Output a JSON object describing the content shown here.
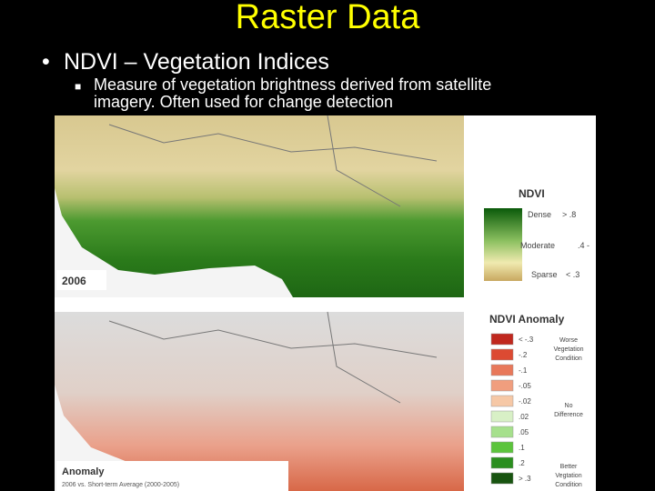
{
  "slide": {
    "title": "Raster Data",
    "bullet": "NDVI – Vegetation Indices",
    "sub_bullet": [
      "Measure of vegetation brightness derived from satellite",
      "imagery. Often used for change detection"
    ],
    "figure": {
      "ndvi_map": {
        "year_label": "2006"
      },
      "ndvi_legend": {
        "title": "NDVI",
        "dense": "Dense",
        "dense_value": "> .8",
        "moderate": "Moderate",
        "moderate_value": ".4 -",
        "sparse": "Sparse",
        "sparse_value": "< .3"
      },
      "anomaly_map": {
        "label": "Anomaly",
        "caption": "2006 vs. Short-term Average (2000-2005)"
      },
      "anomaly_legend": {
        "title": "NDVI Anomaly",
        "classes": [
          {
            "label": "< -.3",
            "color": "#c0281e"
          },
          {
            "label": "-.2",
            "color": "#dc4a32"
          },
          {
            "label": "-.1",
            "color": "#e8785a"
          },
          {
            "label": "-.05",
            "color": "#f09e7e"
          },
          {
            "label": "-.02",
            "color": "#f6c8a6"
          },
          {
            "label": ".02",
            "color": "#d8f0c6"
          },
          {
            "label": ".05",
            "color": "#a6e08c"
          },
          {
            "label": ".1",
            "color": "#5cc43c"
          },
          {
            "label": ".2",
            "color": "#2a8e1e"
          },
          {
            "label": "> .3",
            "color": "#185410"
          }
        ],
        "worse": "Worse Vegetation Condition",
        "none": "No Difference",
        "better": "Better Vegtation Condition"
      }
    }
  }
}
